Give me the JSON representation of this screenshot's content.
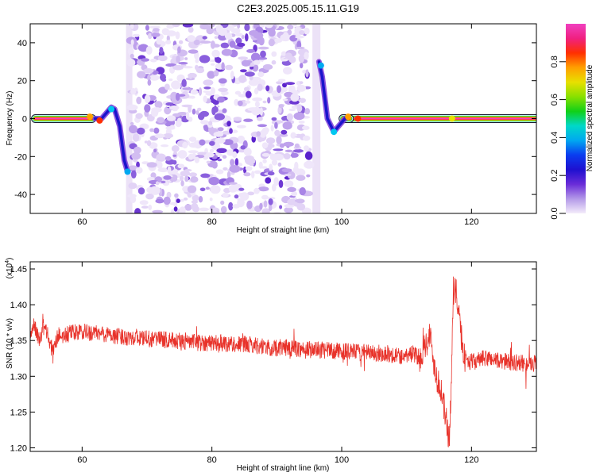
{
  "title": "C2E3.2025.005.15.11.G19",
  "chart_data": [
    {
      "type": "heatmap",
      "xlabel": "Height of straight line (km)",
      "ylabel": "Frequency (Hz)",
      "xlim": [
        52,
        130
      ],
      "ylim": [
        -50,
        50
      ],
      "xticks": [
        60,
        80,
        100,
        120
      ],
      "yticks": [
        -40,
        -20,
        0,
        20,
        40
      ],
      "colorbar": {
        "label": "Normalized spectral amplitude",
        "range": [
          0,
          1
        ],
        "ticks": [
          "0.0",
          "0.2",
          "0.4",
          "0.6",
          "0.8"
        ],
        "colors": [
          "#f4ecfa",
          "#b399e8",
          "#6a2cd8",
          "#1e10d0",
          "#0a3cf0",
          "#00a8f0",
          "#00d8c8",
          "#10d018",
          "#88e000",
          "#e8e000",
          "#ffa000",
          "#ff3000",
          "#f02080",
          "#f040c0"
        ]
      },
      "description_regions": {
        "center_band_km": [
          52.8,
          130
        ],
        "noise_block_km": [
          67.5,
          95
        ]
      },
      "ridge": [
        [
          52.8,
          0
        ],
        [
          59.5,
          0
        ],
        [
          61,
          1
        ],
        [
          62,
          0
        ],
        [
          63,
          0
        ],
        [
          64.5,
          6
        ],
        [
          65,
          5
        ],
        [
          65.8,
          -4
        ],
        [
          66.5,
          -22
        ],
        [
          67,
          -28
        ]
      ],
      "ridge_right": [
        [
          96.5,
          30
        ],
        [
          97,
          22
        ],
        [
          97.8,
          0
        ],
        [
          98.8,
          -7
        ],
        [
          99.5,
          -4
        ],
        [
          100.5,
          0
        ],
        [
          101,
          1
        ],
        [
          102,
          0
        ],
        [
          130,
          0
        ]
      ]
    },
    {
      "type": "line",
      "xlabel": "Height of straight line (km)",
      "ylabel": "SNR (10 * v/v)",
      "y_multiplier": "(x10",
      "y_multiplier_exp": "4",
      "y_multiplier_close": ")",
      "xlim": [
        52,
        130
      ],
      "ylim": [
        1.195,
        1.46
      ],
      "xticks": [
        60,
        80,
        100,
        120
      ],
      "yticks": [
        "1.20",
        "1.25",
        "1.30",
        "1.35",
        "1.40",
        "1.45"
      ],
      "color": "#e8322a",
      "x": [
        52,
        52.6,
        53,
        53.6,
        54,
        54.6,
        55,
        55.6,
        56,
        56.6,
        57,
        58,
        60,
        62,
        64,
        66,
        68,
        70,
        72,
        74,
        76,
        78,
        80,
        82,
        84,
        86,
        88,
        89,
        90,
        92,
        94,
        96,
        98,
        100,
        102,
        104,
        106,
        108,
        109,
        110,
        111,
        112,
        112.6,
        113,
        113.6,
        114,
        114.6,
        115,
        115.6,
        116,
        116.4,
        116.6,
        116.9,
        117.2,
        117.6,
        118,
        118.6,
        119,
        120,
        121,
        122,
        123,
        124,
        126,
        128,
        129,
        130
      ],
      "values": [
        1.345,
        1.375,
        1.36,
        1.35,
        1.38,
        1.36,
        1.345,
        1.335,
        1.35,
        1.36,
        1.355,
        1.36,
        1.362,
        1.36,
        1.358,
        1.355,
        1.355,
        1.352,
        1.352,
        1.35,
        1.348,
        1.347,
        1.347,
        1.346,
        1.345,
        1.344,
        1.342,
        1.338,
        1.34,
        1.34,
        1.338,
        1.337,
        1.336,
        1.335,
        1.334,
        1.333,
        1.332,
        1.33,
        1.328,
        1.33,
        1.332,
        1.325,
        1.34,
        1.345,
        1.36,
        1.33,
        1.3,
        1.29,
        1.265,
        1.245,
        1.22,
        1.21,
        1.3,
        1.42,
        1.42,
        1.385,
        1.345,
        1.325,
        1.32,
        1.322,
        1.325,
        1.325,
        1.322,
        1.32,
        1.318,
        1.318,
        1.318
      ]
    }
  ]
}
